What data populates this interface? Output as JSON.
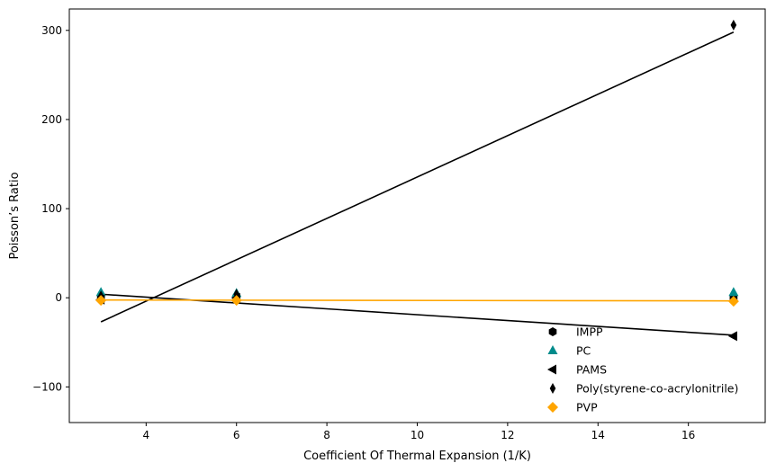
{
  "chart_data": {
    "type": "scatter",
    "title": "",
    "xlabel": "Coefficient Of Thermal Expansion (1/K)",
    "ylabel": "Poisson’s Ratio",
    "xlim": [
      2.3,
      17.7
    ],
    "ylim": [
      -140,
      324
    ],
    "xticks": [
      4,
      6,
      8,
      10,
      12,
      14,
      16
    ],
    "yticks": [
      -100,
      0,
      100,
      200,
      300
    ],
    "ytick_labels": [
      "−100",
      "0",
      "100",
      "200",
      "300"
    ],
    "grid": false,
    "legend_position": "lower-right",
    "series": [
      {
        "name": "IMPP",
        "marker": "hexagon",
        "color": "#000000",
        "points": [
          [
            3,
            1
          ],
          [
            6,
            1
          ],
          [
            17,
            0
          ]
        ],
        "fit": null
      },
      {
        "name": "PC",
        "marker": "triangle-up",
        "color": "#008b8b",
        "points": [
          [
            3,
            6
          ],
          [
            6,
            5
          ],
          [
            17,
            6
          ]
        ],
        "fit": null
      },
      {
        "name": "PAMS",
        "marker": "triangle-left",
        "color": "#000000",
        "points": [
          [
            3,
            -2
          ],
          [
            6,
            0
          ],
          [
            17,
            -43
          ]
        ],
        "fit": {
          "x": [
            3,
            17
          ],
          "y": [
            4,
            -42
          ],
          "color": "#000000"
        }
      },
      {
        "name": "Poly(styrene-co-acrylonitrile)",
        "marker": "thin-diamond",
        "color": "#000000",
        "points": [
          [
            3,
            2
          ],
          [
            6,
            4
          ],
          [
            17,
            306
          ]
        ],
        "fit": {
          "x": [
            3,
            17
          ],
          "y": [
            -27,
            298
          ],
          "color": "#000000"
        }
      },
      {
        "name": "PVP",
        "marker": "diamond",
        "color": "#ffa500",
        "points": [
          [
            3,
            -3
          ],
          [
            6,
            -3
          ],
          [
            17,
            -4
          ]
        ],
        "fit": {
          "x": [
            3,
            17
          ],
          "y": [
            -2.5,
            -3.5
          ],
          "color": "#ffa500"
        }
      }
    ]
  }
}
